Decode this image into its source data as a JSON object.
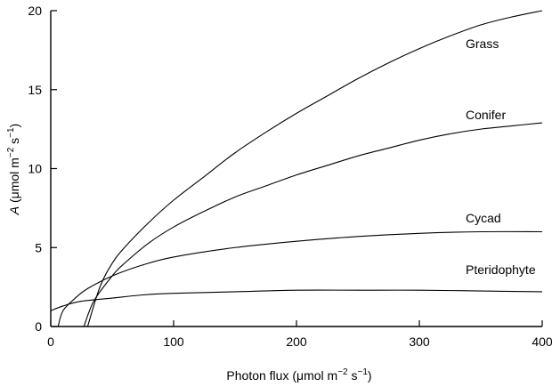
{
  "chart_data": {
    "type": "line",
    "title": "",
    "xlabel": "Photon flux (μmol m⁻² s⁻¹)",
    "ylabel": "A (μmol m⁻² s⁻¹)",
    "xlim": [
      0,
      400
    ],
    "ylim": [
      0,
      20
    ],
    "xticks": [
      0,
      100,
      200,
      300,
      400
    ],
    "yticks": [
      0,
      5,
      10,
      15,
      20
    ],
    "grid": false,
    "legend": "none",
    "series": [
      {
        "name": "Grass",
        "x": [
          30,
          40,
          50,
          60,
          80,
          100,
          125,
          150,
          175,
          200,
          225,
          250,
          275,
          300,
          325,
          350,
          375,
          400
        ],
        "y": [
          0,
          2.5,
          4.0,
          5.0,
          6.6,
          8.0,
          9.5,
          11.0,
          12.3,
          13.5,
          14.6,
          15.7,
          16.7,
          17.6,
          18.4,
          19.1,
          19.6,
          20.0
        ]
      },
      {
        "name": "Conifer",
        "x": [
          27,
          35,
          50,
          60,
          80,
          100,
          125,
          150,
          175,
          200,
          225,
          250,
          275,
          300,
          325,
          350,
          375,
          400
        ],
        "y": [
          0,
          1.6,
          3.2,
          4.0,
          5.3,
          6.3,
          7.3,
          8.2,
          8.9,
          9.6,
          10.2,
          10.8,
          11.3,
          11.8,
          12.2,
          12.5,
          12.7,
          12.9
        ]
      },
      {
        "name": "Cycad",
        "x": [
          6,
          10,
          20,
          30,
          50,
          75,
          100,
          150,
          200,
          250,
          300,
          350,
          400
        ],
        "y": [
          0,
          1.0,
          1.8,
          2.4,
          3.2,
          3.9,
          4.4,
          5.0,
          5.4,
          5.7,
          5.9,
          6.0,
          6.0
        ]
      },
      {
        "name": "Pteridophyte",
        "x": [
          0,
          10,
          25,
          50,
          75,
          100,
          150,
          200,
          250,
          300,
          350,
          400
        ],
        "y": [
          1.0,
          1.3,
          1.6,
          1.8,
          2.0,
          2.1,
          2.2,
          2.3,
          2.3,
          2.3,
          2.25,
          2.2
        ]
      }
    ],
    "labels": {
      "grass": "Grass",
      "conifer": "Conifer",
      "cycad": "Cycad",
      "pteridophyte": "Pteridophyte",
      "x_title_main": "Photon flux (",
      "x_title_unit": "μmol m",
      "x_title_exp1": "−2",
      "x_title_mid": " s",
      "x_title_exp2": "−1",
      "x_title_end": ")",
      "y_title_var": "A",
      "y_title_main": " (",
      "y_title_unit": "μmol m",
      "y_title_exp1": "−2",
      "y_title_mid": " s",
      "y_title_exp2": "−1",
      "y_title_end": ")"
    }
  }
}
